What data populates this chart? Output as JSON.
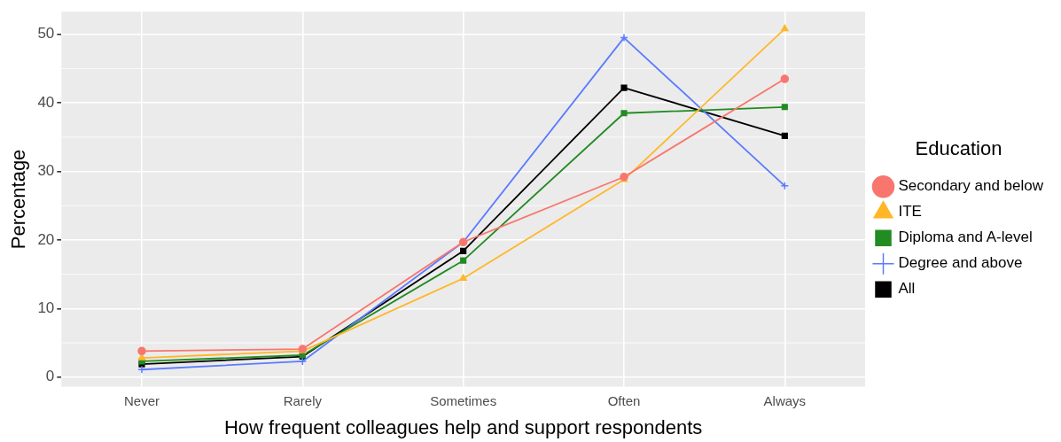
{
  "chart_data": {
    "type": "line",
    "xlabel": "How frequent colleagues help and support respondents",
    "ylabel": "Percentage",
    "legend_title": "Education",
    "categories": [
      "Never",
      "Rarely",
      "Sometimes",
      "Often",
      "Always"
    ],
    "series": [
      {
        "name": "Secondary and below",
        "color": "#f8766d",
        "marker": "circle",
        "values": [
          3.8,
          4.1,
          19.7,
          29.2,
          43.5
        ]
      },
      {
        "name": "ITE",
        "color": "#ffb728",
        "marker": "triangle",
        "values": [
          2.8,
          3.8,
          14.4,
          28.8,
          50.8
        ]
      },
      {
        "name": "Diploma and A-level",
        "color": "#228b22",
        "marker": "square",
        "values": [
          2.3,
          3.2,
          17.0,
          38.5,
          39.4
        ]
      },
      {
        "name": "Degree and above",
        "color": "#5b7bff",
        "marker": "cross",
        "values": [
          1.1,
          2.3,
          19.7,
          49.5,
          27.9
        ]
      },
      {
        "name": "All",
        "color": "#000000",
        "marker": "square",
        "values": [
          1.9,
          3.0,
          18.4,
          42.2,
          35.2
        ]
      }
    ],
    "ylim": [
      -1.4,
      53.3
    ],
    "yticks": [
      0,
      10,
      20,
      30,
      40,
      50
    ],
    "grid": true,
    "legend": "right",
    "line_style": "solid"
  }
}
